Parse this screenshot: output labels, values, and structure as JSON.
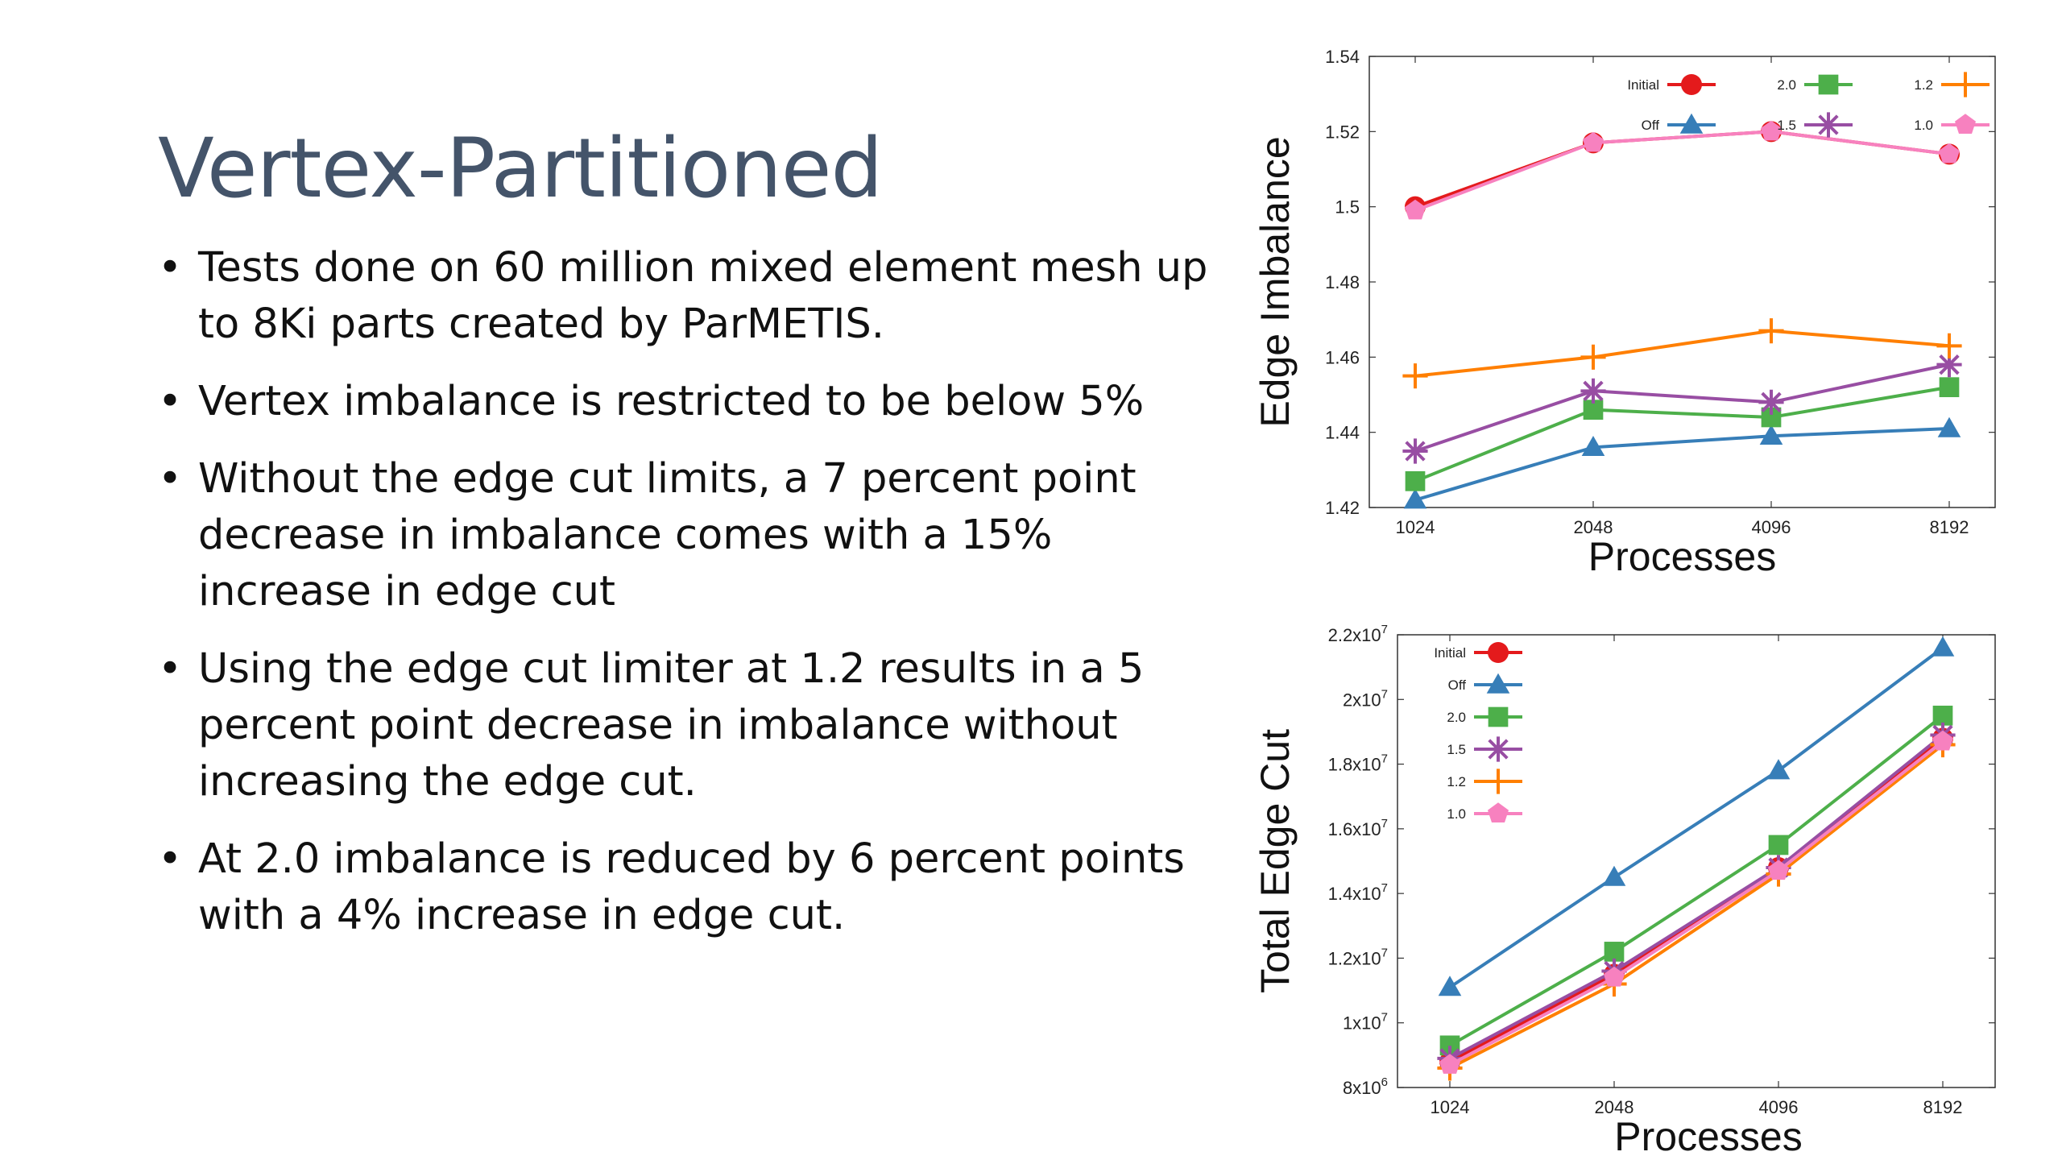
{
  "slide": {
    "title": "Vertex-Partitioned",
    "bullets": [
      "Tests done on 60 million mixed element mesh up to 8Ki parts created by ParMETIS.",
      "Vertex imbalance is restricted to be below 5%",
      "Without the edge cut limits, a 7 percent point decrease in imbalance comes with a 15% increase in edge cut",
      "Using the edge cut limiter at 1.2 results in a 5 percent point decrease in imbalance without increasing the edge cut.",
      "At 2.0 imbalance is reduced by 6 percent points with a 4% increase in edge cut."
    ],
    "bullet_char": "•"
  },
  "colors": {
    "title": "#44546a",
    "Initial": "#e41a1c",
    "Off": "#377eb8",
    "2.0": "#4daf4a",
    "1.5": "#984ea3",
    "1.2": "#ff7f00",
    "1.0": "#f781bf"
  },
  "chart_data": [
    {
      "type": "line",
      "title": "",
      "xlabel": "Processes",
      "ylabel": "Edge Imbalance",
      "x": [
        1024,
        2048,
        4096,
        8192
      ],
      "xticks": [
        "1024",
        "2048",
        "4096",
        "8192"
      ],
      "ylim": [
        1.42,
        1.54
      ],
      "yticks": [
        "1.42",
        "1.44",
        "1.46",
        "1.48",
        "1.5",
        "1.52",
        "1.54"
      ],
      "grid": false,
      "legend_position": "top",
      "series": [
        {
          "name": "Initial",
          "marker": "circle",
          "values": [
            1.5,
            1.517,
            1.52,
            1.514
          ]
        },
        {
          "name": "Off",
          "marker": "triangle",
          "values": [
            1.422,
            1.436,
            1.439,
            1.441
          ]
        },
        {
          "name": "2.0",
          "marker": "square",
          "values": [
            1.427,
            1.446,
            1.444,
            1.452
          ]
        },
        {
          "name": "1.5",
          "marker": "star",
          "values": [
            1.435,
            1.451,
            1.448,
            1.458
          ]
        },
        {
          "name": "1.2",
          "marker": "plus",
          "values": [
            1.455,
            1.46,
            1.467,
            1.463
          ]
        },
        {
          "name": "1.0",
          "marker": "pentagon",
          "values": [
            1.499,
            1.517,
            1.52,
            1.514
          ]
        }
      ]
    },
    {
      "type": "line",
      "title": "",
      "xlabel": "Processes",
      "ylabel": "Total Edge Cut",
      "x": [
        1024,
        2048,
        4096,
        8192
      ],
      "xticks": [
        "1024",
        "2048",
        "4096",
        "8192"
      ],
      "ylim": [
        8000000,
        22000000
      ],
      "yticks": [
        {
          "base": "8x10",
          "exp": "6"
        },
        {
          "base": "1x10",
          "exp": "7"
        },
        {
          "base": "1.2x10",
          "exp": "7"
        },
        {
          "base": "1.4x10",
          "exp": "7"
        },
        {
          "base": "1.6x10",
          "exp": "7"
        },
        {
          "base": "1.8x10",
          "exp": "7"
        },
        {
          "base": "2x10",
          "exp": "7"
        },
        {
          "base": "2.2x10",
          "exp": "7"
        }
      ],
      "grid": false,
      "legend_position": "top-left",
      "series": [
        {
          "name": "Initial",
          "marker": "circle",
          "values": [
            8800000,
            11500000,
            14800000,
            18800000
          ]
        },
        {
          "name": "Off",
          "marker": "triangle",
          "values": [
            11100000,
            14500000,
            17800000,
            21600000
          ]
        },
        {
          "name": "2.0",
          "marker": "square",
          "values": [
            9300000,
            12200000,
            15500000,
            19500000
          ]
        },
        {
          "name": "1.5",
          "marker": "star",
          "values": [
            8900000,
            11600000,
            14800000,
            18900000
          ]
        },
        {
          "name": "1.2",
          "marker": "plus",
          "values": [
            8600000,
            11200000,
            14600000,
            18600000
          ]
        },
        {
          "name": "1.0",
          "marker": "pentagon",
          "values": [
            8700000,
            11400000,
            14700000,
            18700000
          ]
        }
      ]
    }
  ]
}
